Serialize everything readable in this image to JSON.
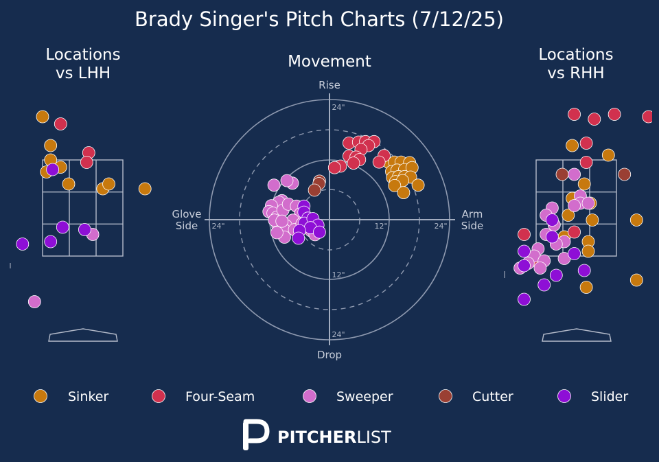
{
  "title": "Brady Singer's Pitch Charts (7/12/25)",
  "chart_data": [
    {
      "type": "scatter",
      "title": "Locations\nvs LHH",
      "x_range": [
        -3.5,
        3.0
      ],
      "y_range": [
        -0.5,
        5.3
      ],
      "series": [
        {
          "name": "Sinker",
          "color": "#c7790e",
          "points": [
            [
              -3.0,
              4.3
            ],
            [
              -3.05,
              3.2
            ],
            [
              -2.1,
              3.1
            ],
            [
              -1.0,
              4.4
            ],
            [
              -0.8,
              3.8
            ],
            [
              -0.8,
              3.5
            ],
            [
              -0.55,
              3.35
            ],
            [
              -0.9,
              3.25
            ],
            [
              -0.35,
              3.0
            ],
            [
              0.5,
              2.9
            ],
            [
              0.65,
              3.0
            ],
            [
              1.55,
              2.9
            ],
            [
              -2.05,
              2.6
            ]
          ]
        },
        {
          "name": "Four-Seam",
          "color": "#d1314e",
          "points": [
            [
              2.6,
              4.5
            ],
            [
              -0.55,
              4.25
            ],
            [
              0.15,
              3.65
            ],
            [
              0.1,
              3.45
            ],
            [
              -2.25,
              2.7
            ],
            [
              2.3,
              2.05
            ]
          ]
        },
        {
          "name": "Sweeper",
          "color": "#d26dcc",
          "points": [
            [
              -2.05,
              2.15
            ],
            [
              0.25,
              1.95
            ],
            [
              -1.2,
              0.55
            ],
            [
              -2.45,
              -0.25
            ]
          ]
        },
        {
          "name": "Cutter",
          "color": "#9a3f33",
          "points": []
        },
        {
          "name": "Slider",
          "color": "#8e0fd6",
          "points": [
            [
              -0.75,
              3.3
            ],
            [
              -0.5,
              2.1
            ],
            [
              0.05,
              2.05
            ],
            [
              -0.8,
              1.8
            ],
            [
              -1.5,
              1.75
            ]
          ]
        }
      ]
    },
    {
      "type": "scatter",
      "title": "Movement",
      "axis_labels": {
        "top": "Rise",
        "bottom": "Drop",
        "left": "Glove\nSide",
        "right": "Arm\nSide"
      },
      "ring_labels": [
        "24\"",
        "24\"",
        "12\"",
        "12\"",
        "24\"",
        "24\""
      ],
      "x_range": [
        -24,
        24
      ],
      "y_range": [
        -24,
        24
      ],
      "series": [
        {
          "name": "Sinker",
          "color": "#c7790e",
          "points": [
            [
              12.0,
              11.3
            ],
            [
              13.0,
              11.5
            ],
            [
              14.3,
              11.5
            ],
            [
              16.0,
              11.4
            ],
            [
              12.4,
              9.6
            ],
            [
              13.5,
              9.9
            ],
            [
              15.0,
              10.0
            ],
            [
              16.5,
              10.4
            ],
            [
              12.6,
              8.4
            ],
            [
              13.8,
              8.6
            ],
            [
              15.0,
              8.6
            ],
            [
              16.2,
              8.5
            ],
            [
              13.2,
              7.6
            ],
            [
              14.6,
              7.8
            ],
            [
              17.7,
              6.9
            ],
            [
              13.0,
              6.8
            ],
            [
              14.8,
              5.4
            ]
          ]
        },
        {
          "name": "Four-Seam",
          "color": "#d1314e",
          "points": [
            [
              3.9,
              15.3
            ],
            [
              5.8,
              15.5
            ],
            [
              7.2,
              15.6
            ],
            [
              8.9,
              15.6
            ],
            [
              7.8,
              14.8
            ],
            [
              6.3,
              14.0
            ],
            [
              3.9,
              12.7
            ],
            [
              5.3,
              12.5
            ],
            [
              6.0,
              12.0
            ],
            [
              10.9,
              12.8
            ],
            [
              4.8,
              11.3
            ],
            [
              9.9,
              11.5
            ],
            [
              2.2,
              10.7
            ],
            [
              1.0,
              10.4
            ]
          ]
        },
        {
          "name": "Sweeper",
          "color": "#d26dcc",
          "points": [
            [
              -11.1,
              6.9
            ],
            [
              -7.4,
              7.3
            ],
            [
              -8.5,
              7.8
            ],
            [
              -9.5,
              3.8
            ],
            [
              -10.1,
              3.5
            ],
            [
              -11.6,
              2.8
            ],
            [
              -12.1,
              1.6
            ],
            [
              -11.3,
              1.3
            ],
            [
              -10.5,
              0.5
            ],
            [
              -9.3,
              1.9
            ],
            [
              -8.2,
              3.1
            ],
            [
              -6.6,
              2.7
            ],
            [
              -5.8,
              1.2
            ],
            [
              -7.3,
              -0.1
            ],
            [
              -8.7,
              -1.2
            ],
            [
              -10.3,
              -1.4
            ],
            [
              -11.0,
              -0.1
            ],
            [
              -9.0,
              -2.1
            ],
            [
              -7.0,
              -2.0
            ],
            [
              -5.5,
              -0.8
            ],
            [
              -3.0,
              -0.7
            ],
            [
              -3.7,
              -2.2
            ],
            [
              -2.9,
              -3.0
            ],
            [
              -9.0,
              -3.5
            ],
            [
              -10.5,
              -2.6
            ],
            [
              -9.5,
              -0.3
            ]
          ]
        },
        {
          "name": "Cutter",
          "color": "#9a3f33",
          "points": [
            [
              -2.0,
              7.7
            ],
            [
              -2.1,
              7.2
            ],
            [
              -3.0,
              5.9
            ]
          ]
        },
        {
          "name": "Slider",
          "color": "#8e0fd6",
          "points": [
            [
              -5.1,
              2.7
            ],
            [
              -5.1,
              1.5
            ],
            [
              -4.3,
              0.3
            ],
            [
              -5.0,
              -0.7
            ],
            [
              -3.3,
              0.2
            ],
            [
              -2.3,
              -1.1
            ],
            [
              -3.8,
              -1.6
            ],
            [
              -6.0,
              -2.2
            ],
            [
              -2.0,
              -2.5
            ],
            [
              -6.2,
              -3.7
            ]
          ]
        }
      ]
    },
    {
      "type": "scatter",
      "title": "Locations\nvs RHH",
      "x_range": [
        -3.0,
        3.5
      ],
      "y_range": [
        -0.5,
        5.3
      ],
      "series": [
        {
          "name": "Sinker",
          "color": "#c7790e",
          "points": [
            [
              -0.1,
              3.8
            ],
            [
              0.8,
              3.6
            ],
            [
              2.9,
              3.3
            ],
            [
              0.2,
              3.0
            ],
            [
              -0.1,
              2.7
            ],
            [
              0.35,
              2.6
            ],
            [
              -0.2,
              2.35
            ],
            [
              0.4,
              2.25
            ],
            [
              1.5,
              2.25
            ],
            [
              -0.3,
              1.9
            ],
            [
              0.3,
              1.8
            ],
            [
              1.5,
              1.0
            ],
            [
              0.25,
              0.85
            ],
            [
              0.3,
              1.6
            ]
          ]
        },
        {
          "name": "Four-Seam",
          "color": "#d1314e",
          "points": [
            [
              1.85,
              5.4
            ],
            [
              -0.05,
              4.45
            ],
            [
              0.45,
              4.35
            ],
            [
              0.95,
              4.45
            ],
            [
              1.8,
              4.4
            ],
            [
              0.25,
              3.85
            ],
            [
              0.25,
              3.45
            ],
            [
              -0.05,
              2.0
            ],
            [
              -1.3,
              1.95
            ],
            [
              -1.0,
              1.4
            ]
          ]
        },
        {
          "name": "Sweeper",
          "color": "#d26dcc",
          "points": [
            [
              -0.05,
              3.2
            ],
            [
              0.1,
              2.75
            ],
            [
              0.1,
              2.6
            ],
            [
              -0.05,
              2.55
            ],
            [
              -0.6,
              2.5
            ],
            [
              0.3,
              2.6
            ],
            [
              -0.75,
              2.35
            ],
            [
              -0.55,
              2.15
            ],
            [
              -0.75,
              1.95
            ],
            [
              -0.3,
              1.8
            ],
            [
              -0.5,
              1.75
            ],
            [
              -0.95,
              1.65
            ],
            [
              -1.05,
              1.5
            ],
            [
              -1.2,
              1.35
            ],
            [
              -0.3,
              1.45
            ],
            [
              -0.8,
              1.4
            ],
            [
              -1.4,
              1.25
            ],
            [
              -0.9,
              1.25
            ]
          ]
        },
        {
          "name": "Cutter",
          "color": "#9a3f33",
          "points": [
            [
              -0.35,
              3.2
            ],
            [
              1.2,
              3.2
            ]
          ]
        },
        {
          "name": "Slider",
          "color": "#8e0fd6",
          "points": [
            [
              -0.6,
              2.25
            ],
            [
              -0.6,
              1.9
            ],
            [
              -0.05,
              1.55
            ],
            [
              -1.3,
              1.6
            ],
            [
              -1.3,
              1.3
            ],
            [
              0.2,
              1.2
            ],
            [
              -0.5,
              1.1
            ],
            [
              -0.8,
              0.9
            ],
            [
              -1.3,
              0.6
            ]
          ]
        }
      ]
    }
  ],
  "legend": [
    {
      "label": "Sinker",
      "color": "#c7790e"
    },
    {
      "label": "Four-Seam",
      "color": "#d1314e"
    },
    {
      "label": "Sweeper",
      "color": "#d26dcc"
    },
    {
      "label": "Cutter",
      "color": "#9a3f33"
    },
    {
      "label": "Slider",
      "color": "#8e0fd6"
    }
  ],
  "logo": {
    "mark": "P",
    "text_bold": "PITCHER",
    "text_light": "LIST"
  }
}
